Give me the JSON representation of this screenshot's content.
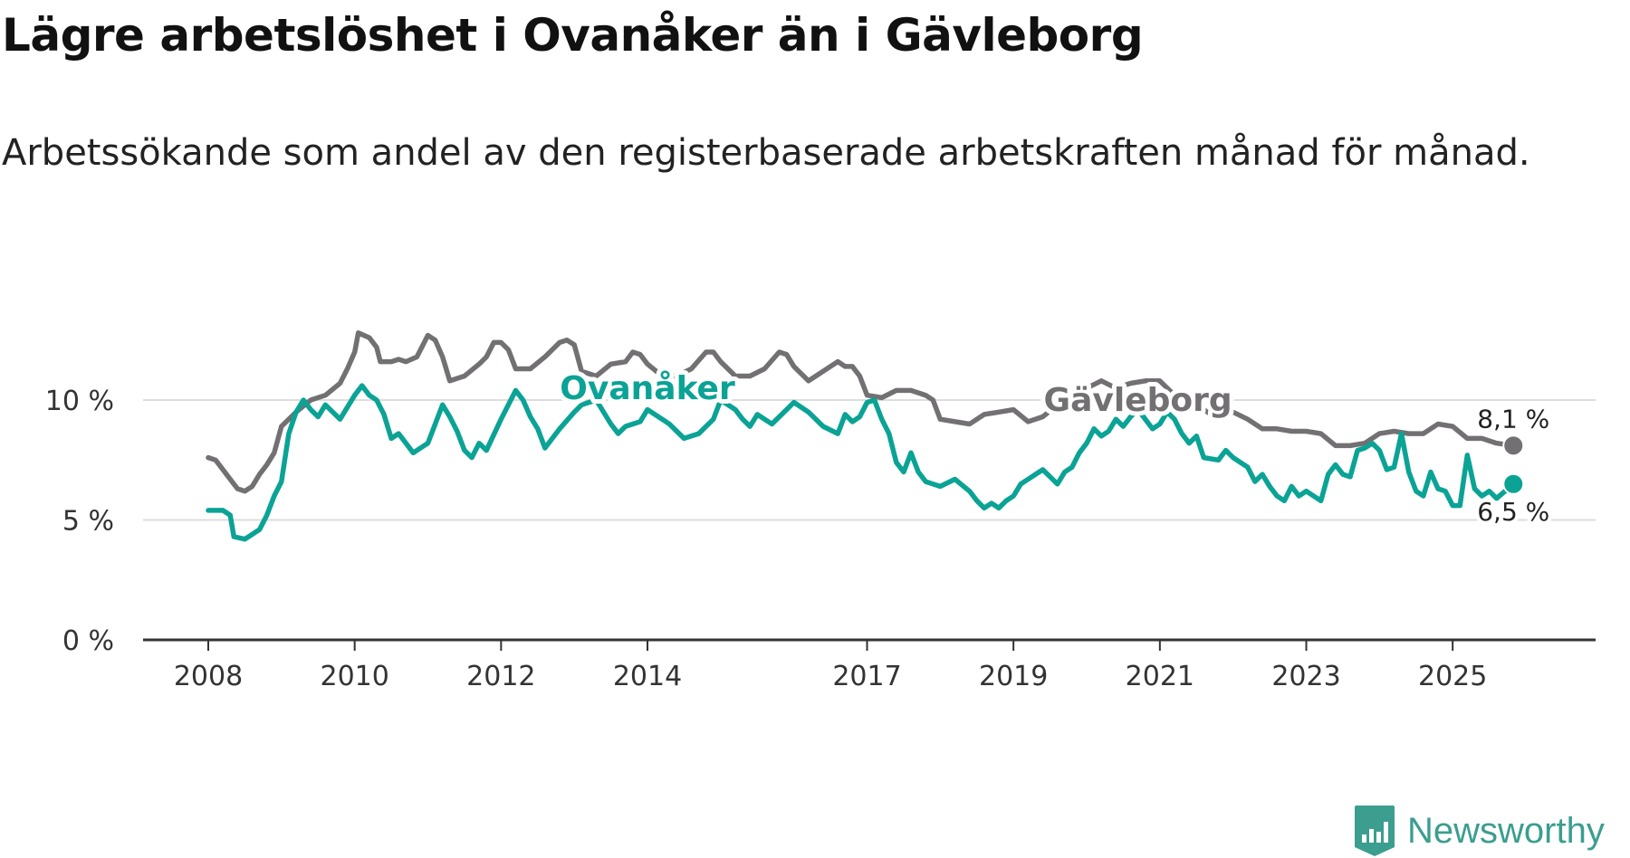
{
  "title": "Lägre arbetslöshet i Ovanåker än i Gävleborg",
  "subtitle": "Arbetssökande som andel av den registerbaserade arbetskraften månad för månad.",
  "logo": {
    "icon": "newsworthy-chart-icon",
    "text": "Newsworthy"
  },
  "colors": {
    "ovanaker": "#0aa395",
    "gavleborg": "#737073",
    "grid": "#dddddd",
    "axis": "#333333"
  },
  "chart_data": {
    "type": "line",
    "title": "Lägre arbetslöshet i Ovanåker än i Gävleborg",
    "subtitle": "Arbetssökande som andel av den registerbaserade arbetskraften månad för månad.",
    "xlabel": "",
    "ylabel": "",
    "x_unit": "year",
    "xlim": [
      2008,
      2026
    ],
    "ylim": [
      0,
      13
    ],
    "y_ticks": [
      {
        "value": 0,
        "label": "0 %"
      },
      {
        "value": 5,
        "label": "5 %"
      },
      {
        "value": 10,
        "label": "10 %"
      }
    ],
    "x_ticks": [
      {
        "value": 2008,
        "label": "2008"
      },
      {
        "value": 2010,
        "label": "2010"
      },
      {
        "value": 2012,
        "label": "2012"
      },
      {
        "value": 2014,
        "label": "2014"
      },
      {
        "value": 2017,
        "label": "2017"
      },
      {
        "value": 2019,
        "label": "2019"
      },
      {
        "value": 2021,
        "label": "2021"
      },
      {
        "value": 2023,
        "label": "2023"
      },
      {
        "value": 2025,
        "label": "2025"
      }
    ],
    "grid": true,
    "series": [
      {
        "name": "Gävleborg",
        "color": "#737073",
        "end_label": "8,1 %",
        "points": [
          [
            2008.0,
            7.6
          ],
          [
            2008.1,
            7.5
          ],
          [
            2008.2,
            7.1
          ],
          [
            2008.3,
            6.7
          ],
          [
            2008.4,
            6.3
          ],
          [
            2008.5,
            6.2
          ],
          [
            2008.6,
            6.4
          ],
          [
            2008.7,
            6.9
          ],
          [
            2008.8,
            7.3
          ],
          [
            2008.9,
            7.8
          ],
          [
            2009.0,
            8.9
          ],
          [
            2009.2,
            9.5
          ],
          [
            2009.4,
            10.0
          ],
          [
            2009.6,
            10.2
          ],
          [
            2009.8,
            10.7
          ],
          [
            2009.9,
            11.3
          ],
          [
            2010.0,
            12.0
          ],
          [
            2010.05,
            12.8
          ],
          [
            2010.2,
            12.6
          ],
          [
            2010.3,
            12.2
          ],
          [
            2010.35,
            11.6
          ],
          [
            2010.5,
            11.6
          ],
          [
            2010.6,
            11.7
          ],
          [
            2010.7,
            11.6
          ],
          [
            2010.85,
            11.8
          ],
          [
            2011.0,
            12.7
          ],
          [
            2011.1,
            12.5
          ],
          [
            2011.2,
            11.8
          ],
          [
            2011.3,
            10.8
          ],
          [
            2011.5,
            11.0
          ],
          [
            2011.7,
            11.5
          ],
          [
            2011.8,
            11.8
          ],
          [
            2011.9,
            12.4
          ],
          [
            2012.0,
            12.4
          ],
          [
            2012.1,
            12.1
          ],
          [
            2012.2,
            11.3
          ],
          [
            2012.4,
            11.3
          ],
          [
            2012.6,
            11.8
          ],
          [
            2012.8,
            12.4
          ],
          [
            2012.9,
            12.5
          ],
          [
            2013.0,
            12.3
          ],
          [
            2013.1,
            11.2
          ],
          [
            2013.3,
            11.0
          ],
          [
            2013.5,
            11.5
          ],
          [
            2013.7,
            11.6
          ],
          [
            2013.8,
            12.0
          ],
          [
            2013.9,
            11.9
          ],
          [
            2014.0,
            11.5
          ],
          [
            2014.2,
            11.0
          ],
          [
            2014.4,
            11.0
          ],
          [
            2014.6,
            11.3
          ],
          [
            2014.8,
            12.0
          ],
          [
            2014.9,
            12.0
          ],
          [
            2015.0,
            11.6
          ],
          [
            2015.2,
            11.0
          ],
          [
            2015.4,
            11.0
          ],
          [
            2015.6,
            11.3
          ],
          [
            2015.8,
            12.0
          ],
          [
            2015.9,
            11.9
          ],
          [
            2016.0,
            11.4
          ],
          [
            2016.2,
            10.8
          ],
          [
            2016.4,
            11.2
          ],
          [
            2016.6,
            11.6
          ],
          [
            2016.7,
            11.4
          ],
          [
            2016.8,
            11.4
          ],
          [
            2016.9,
            11.0
          ],
          [
            2017.0,
            10.2
          ],
          [
            2017.2,
            10.1
          ],
          [
            2017.4,
            10.4
          ],
          [
            2017.6,
            10.4
          ],
          [
            2017.8,
            10.2
          ],
          [
            2017.9,
            10.0
          ],
          [
            2018.0,
            9.2
          ],
          [
            2018.2,
            9.1
          ],
          [
            2018.4,
            9.0
          ],
          [
            2018.6,
            9.4
          ],
          [
            2018.8,
            9.5
          ],
          [
            2019.0,
            9.6
          ],
          [
            2019.2,
            9.1
          ],
          [
            2019.4,
            9.3
          ],
          [
            2019.6,
            9.8
          ],
          [
            2019.8,
            10.0
          ],
          [
            2020.0,
            10.5
          ],
          [
            2020.2,
            10.8
          ],
          [
            2020.4,
            10.5
          ],
          [
            2020.6,
            10.7
          ],
          [
            2020.8,
            10.8
          ],
          [
            2021.0,
            10.8
          ],
          [
            2021.2,
            10.2
          ],
          [
            2021.4,
            9.8
          ],
          [
            2021.6,
            9.6
          ],
          [
            2021.8,
            9.2
          ],
          [
            2022.0,
            9.5
          ],
          [
            2022.2,
            9.2
          ],
          [
            2022.4,
            8.8
          ],
          [
            2022.6,
            8.8
          ],
          [
            2022.8,
            8.7
          ],
          [
            2023.0,
            8.7
          ],
          [
            2023.2,
            8.6
          ],
          [
            2023.4,
            8.1
          ],
          [
            2023.6,
            8.1
          ],
          [
            2023.8,
            8.2
          ],
          [
            2024.0,
            8.6
          ],
          [
            2024.2,
            8.7
          ],
          [
            2024.4,
            8.6
          ],
          [
            2024.6,
            8.6
          ],
          [
            2024.8,
            9.0
          ],
          [
            2025.0,
            8.9
          ],
          [
            2025.2,
            8.4
          ],
          [
            2025.4,
            8.4
          ],
          [
            2025.6,
            8.2
          ],
          [
            2025.83,
            8.1
          ]
        ]
      },
      {
        "name": "Ovanåker",
        "color": "#0aa395",
        "end_label": "6,5 %",
        "points": [
          [
            2008.0,
            5.4
          ],
          [
            2008.1,
            5.4
          ],
          [
            2008.2,
            5.4
          ],
          [
            2008.3,
            5.2
          ],
          [
            2008.35,
            4.3
          ],
          [
            2008.5,
            4.2
          ],
          [
            2008.6,
            4.4
          ],
          [
            2008.7,
            4.6
          ],
          [
            2008.8,
            5.2
          ],
          [
            2008.9,
            6.0
          ],
          [
            2009.0,
            6.6
          ],
          [
            2009.1,
            8.6
          ],
          [
            2009.2,
            9.5
          ],
          [
            2009.3,
            10.0
          ],
          [
            2009.4,
            9.6
          ],
          [
            2009.5,
            9.3
          ],
          [
            2009.6,
            9.8
          ],
          [
            2009.8,
            9.2
          ],
          [
            2010.0,
            10.2
          ],
          [
            2010.1,
            10.6
          ],
          [
            2010.2,
            10.2
          ],
          [
            2010.3,
            10.0
          ],
          [
            2010.4,
            9.4
          ],
          [
            2010.5,
            8.4
          ],
          [
            2010.6,
            8.6
          ],
          [
            2010.8,
            7.8
          ],
          [
            2010.9,
            8.0
          ],
          [
            2011.0,
            8.2
          ],
          [
            2011.1,
            9.0
          ],
          [
            2011.2,
            9.8
          ],
          [
            2011.3,
            9.3
          ],
          [
            2011.4,
            8.7
          ],
          [
            2011.5,
            7.9
          ],
          [
            2011.6,
            7.6
          ],
          [
            2011.7,
            8.2
          ],
          [
            2011.8,
            7.9
          ],
          [
            2012.0,
            9.2
          ],
          [
            2012.1,
            9.8
          ],
          [
            2012.2,
            10.4
          ],
          [
            2012.3,
            10.0
          ],
          [
            2012.4,
            9.3
          ],
          [
            2012.5,
            8.8
          ],
          [
            2012.6,
            8.0
          ],
          [
            2012.8,
            8.8
          ],
          [
            2013.0,
            9.5
          ],
          [
            2013.1,
            9.8
          ],
          [
            2013.3,
            10.0
          ],
          [
            2013.5,
            9.0
          ],
          [
            2013.6,
            8.6
          ],
          [
            2013.7,
            8.9
          ],
          [
            2013.9,
            9.1
          ],
          [
            2014.0,
            9.6
          ],
          [
            2014.2,
            9.2
          ],
          [
            2014.3,
            9.0
          ],
          [
            2014.4,
            8.7
          ],
          [
            2014.5,
            8.4
          ],
          [
            2014.7,
            8.6
          ],
          [
            2014.9,
            9.2
          ],
          [
            2015.0,
            10.0
          ],
          [
            2015.2,
            9.6
          ],
          [
            2015.3,
            9.2
          ],
          [
            2015.4,
            8.9
          ],
          [
            2015.5,
            9.4
          ],
          [
            2015.7,
            9.0
          ],
          [
            2015.9,
            9.6
          ],
          [
            2016.0,
            9.9
          ],
          [
            2016.2,
            9.5
          ],
          [
            2016.4,
            8.9
          ],
          [
            2016.6,
            8.6
          ],
          [
            2016.7,
            9.4
          ],
          [
            2016.8,
            9.1
          ],
          [
            2016.9,
            9.3
          ],
          [
            2017.0,
            9.9
          ],
          [
            2017.1,
            10.0
          ],
          [
            2017.2,
            9.2
          ],
          [
            2017.3,
            8.6
          ],
          [
            2017.4,
            7.4
          ],
          [
            2017.5,
            7.0
          ],
          [
            2017.6,
            7.8
          ],
          [
            2017.7,
            7.0
          ],
          [
            2017.8,
            6.6
          ],
          [
            2017.9,
            6.5
          ],
          [
            2018.0,
            6.4
          ],
          [
            2018.2,
            6.7
          ],
          [
            2018.4,
            6.2
          ],
          [
            2018.5,
            5.8
          ],
          [
            2018.6,
            5.5
          ],
          [
            2018.7,
            5.7
          ],
          [
            2018.8,
            5.5
          ],
          [
            2018.9,
            5.8
          ],
          [
            2019.0,
            6.0
          ],
          [
            2019.1,
            6.5
          ],
          [
            2019.2,
            6.7
          ],
          [
            2019.4,
            7.1
          ],
          [
            2019.5,
            6.8
          ],
          [
            2019.6,
            6.5
          ],
          [
            2019.7,
            7.0
          ],
          [
            2019.8,
            7.2
          ],
          [
            2019.9,
            7.8
          ],
          [
            2020.0,
            8.2
          ],
          [
            2020.1,
            8.8
          ],
          [
            2020.2,
            8.5
          ],
          [
            2020.3,
            8.7
          ],
          [
            2020.4,
            9.2
          ],
          [
            2020.5,
            8.9
          ],
          [
            2020.6,
            9.3
          ],
          [
            2020.7,
            9.6
          ],
          [
            2020.8,
            9.2
          ],
          [
            2020.9,
            8.8
          ],
          [
            2021.0,
            9.0
          ],
          [
            2021.1,
            9.5
          ],
          [
            2021.2,
            9.2
          ],
          [
            2021.3,
            8.6
          ],
          [
            2021.4,
            8.2
          ],
          [
            2021.5,
            8.5
          ],
          [
            2021.6,
            7.6
          ],
          [
            2021.8,
            7.5
          ],
          [
            2021.9,
            7.9
          ],
          [
            2022.0,
            7.6
          ],
          [
            2022.2,
            7.2
          ],
          [
            2022.3,
            6.6
          ],
          [
            2022.4,
            6.9
          ],
          [
            2022.5,
            6.4
          ],
          [
            2022.6,
            6.0
          ],
          [
            2022.7,
            5.8
          ],
          [
            2022.8,
            6.4
          ],
          [
            2022.9,
            6.0
          ],
          [
            2023.0,
            6.2
          ],
          [
            2023.1,
            6.0
          ],
          [
            2023.2,
            5.8
          ],
          [
            2023.3,
            6.9
          ],
          [
            2023.4,
            7.3
          ],
          [
            2023.5,
            6.9
          ],
          [
            2023.6,
            6.8
          ],
          [
            2023.7,
            7.9
          ],
          [
            2023.8,
            8.0
          ],
          [
            2023.9,
            8.2
          ],
          [
            2024.0,
            7.9
          ],
          [
            2024.1,
            7.1
          ],
          [
            2024.2,
            7.2
          ],
          [
            2024.3,
            8.6
          ],
          [
            2024.4,
            7.0
          ],
          [
            2024.5,
            6.2
          ],
          [
            2024.6,
            6.0
          ],
          [
            2024.7,
            7.0
          ],
          [
            2024.8,
            6.3
          ],
          [
            2024.9,
            6.2
          ],
          [
            2025.0,
            5.6
          ],
          [
            2025.1,
            5.6
          ],
          [
            2025.2,
            7.7
          ],
          [
            2025.3,
            6.3
          ],
          [
            2025.4,
            6.0
          ],
          [
            2025.5,
            6.2
          ],
          [
            2025.6,
            5.9
          ],
          [
            2025.83,
            6.5
          ]
        ]
      }
    ],
    "annotations": [
      {
        "text": "Ovanåker",
        "series": "Ovanåker",
        "x": 2014.0,
        "y": 10.5
      },
      {
        "text": "Gävleborg",
        "series": "Gävleborg",
        "x": 2020.7,
        "y": 10.0
      }
    ]
  }
}
